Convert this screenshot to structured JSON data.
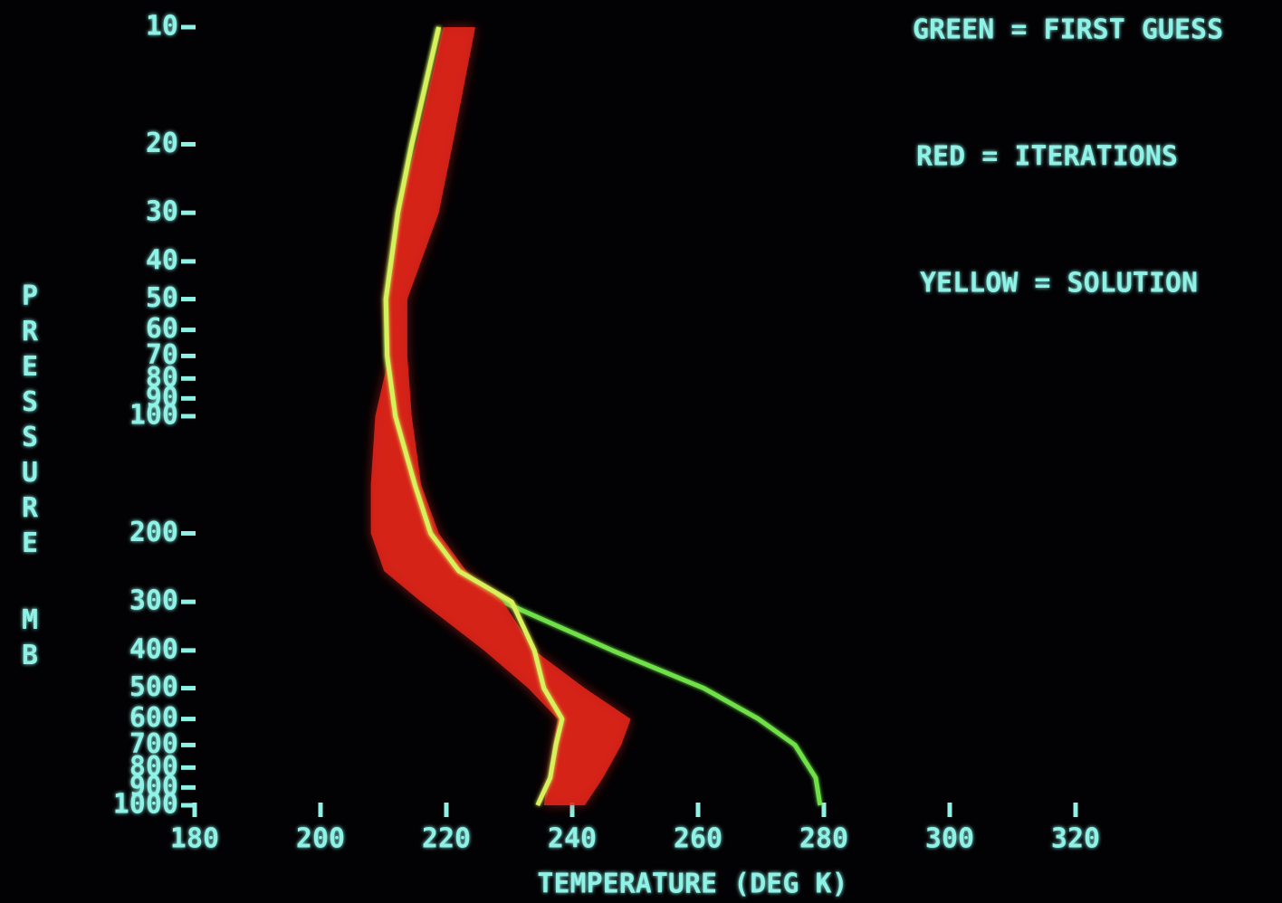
{
  "chart_data": {
    "type": "line",
    "x_label": "TEMPERATURE (DEG K)",
    "y_label": "PRESSURE",
    "y_unit": "MB",
    "y": [
      10,
      20,
      30,
      50,
      70,
      100,
      150,
      200,
      250,
      300,
      400,
      500,
      600,
      700,
      850,
      1000
    ],
    "series": [
      {
        "name": "GREEN = FIRST GUESS",
        "color": "#6fe04a",
        "values": [
          218.8,
          214.5,
          212.3,
          210.4,
          210.6,
          211.9,
          214.8,
          217.1,
          221.7,
          229,
          246.4,
          260.9,
          269.6,
          275.4,
          278.7,
          279.4
        ]
      },
      {
        "name": "RED = ITERATIONS",
        "color": "#e8261a",
        "values": [
          219.5,
          215.2,
          212.3,
          210.1,
          210.9,
          208.7,
          208,
          208,
          210.1,
          216,
          226,
          233,
          237.7,
          237,
          236.2,
          235.5
        ],
        "upper": [
          224.6,
          221,
          218.8,
          213.8,
          213.8,
          214.5,
          216,
          218.8,
          223.2,
          229,
          234,
          242,
          249.3,
          247.8,
          244.9,
          242
        ]
      },
      {
        "name": "YELLOW = SOLUTION",
        "color": "#d8f05a",
        "values": [
          218.8,
          214.5,
          212.3,
          210.4,
          210.6,
          211.9,
          215,
          217.5,
          222,
          230.4,
          234,
          235.5,
          238.4,
          237.4,
          236.5,
          234.5
        ]
      }
    ],
    "xlim": [
      180,
      320
    ],
    "xticks": [
      180,
      200,
      220,
      240,
      260,
      280,
      300,
      320
    ],
    "ylim": [
      10,
      1000
    ],
    "y_scale": "log",
    "y_inverted": true,
    "yticks": [
      10,
      20,
      30,
      40,
      50,
      60,
      70,
      80,
      90,
      100,
      200,
      300,
      400,
      500,
      600,
      700,
      800,
      900,
      1000
    ],
    "axis_color": "#8ff2e6"
  }
}
